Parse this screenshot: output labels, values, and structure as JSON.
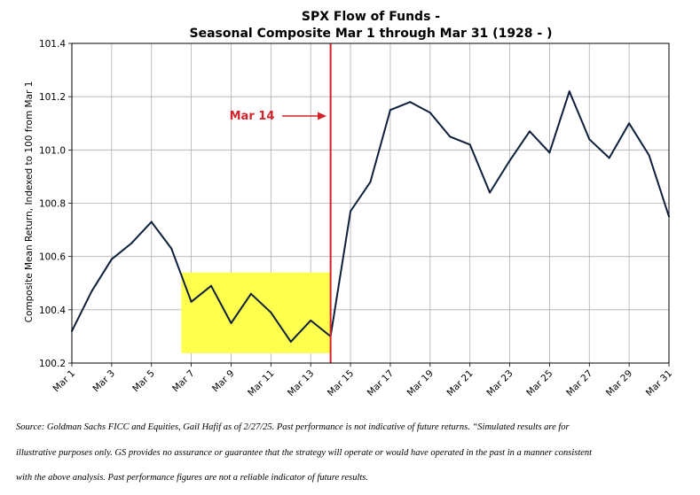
{
  "chart_data": {
    "type": "line",
    "title_line1": "SPX Flow of Funds -",
    "title_line2": "Seasonal Composite Mar 1 through Mar 31 (1928 - )",
    "ylabel": "Composite Mean Return, Indexed to 100 from Mar 1",
    "ylim": [
      100.2,
      101.4
    ],
    "yticks": [
      100.2,
      100.4,
      100.6,
      100.8,
      101.0,
      101.2,
      101.4
    ],
    "ytick_labels": [
      "100.2",
      "100.4",
      "100.6",
      "100.8",
      "101.0",
      "101.2",
      "101.4"
    ],
    "xlim": [
      1,
      31
    ],
    "xticks": [
      1,
      3,
      5,
      7,
      9,
      11,
      13,
      15,
      17,
      19,
      21,
      23,
      25,
      27,
      29,
      31
    ],
    "xtick_labels": [
      "Mar 1",
      "Mar 3",
      "Mar 5",
      "Mar 7",
      "Mar 9",
      "Mar 11",
      "Mar 13",
      "Mar 15",
      "Mar 17",
      "Mar 19",
      "Mar 21",
      "Mar 23",
      "Mar 25",
      "Mar 27",
      "Mar 29",
      "Mar 31"
    ],
    "grid": true,
    "series": [
      {
        "name": "Composite",
        "color": "#0d1f3c",
        "x": [
          1,
          2,
          3,
          4,
          5,
          6,
          7,
          8,
          9,
          10,
          11,
          12,
          13,
          14,
          15,
          16,
          17,
          18,
          19,
          20,
          21,
          22,
          23,
          24,
          25,
          26,
          27,
          28,
          29,
          30,
          31
        ],
        "values": [
          100.32,
          100.47,
          100.59,
          100.65,
          100.73,
          100.63,
          100.43,
          100.49,
          100.35,
          100.46,
          100.39,
          100.28,
          100.36,
          100.3,
          100.77,
          100.88,
          101.15,
          101.18,
          101.14,
          101.05,
          101.02,
          100.84,
          100.96,
          101.07,
          100.99,
          101.22,
          101.04,
          100.97,
          101.1,
          100.98,
          100.75
        ]
      }
    ],
    "highlight": {
      "x_range": [
        6.5,
        14
      ],
      "y_range": [
        100.237,
        100.54
      ],
      "color": "#ffff4d"
    },
    "vline": {
      "x": 14,
      "color": "#d2232a"
    },
    "annotation": {
      "text": "Mar 14",
      "color": "#d2232a"
    }
  },
  "footer": {
    "line1": "Source: Goldman Sachs FICC and Equities, Gail Hafif as of 2/27/25. Past performance is not indicative of future returns. “Simulated results are for",
    "line2": "illustrative purposes only. GS provides no assurance or guarantee that the strategy will operate or would have operated in the past in a manner consistent",
    "line3": "with the above analysis. Past performance figures are not a reliable indicator of future results."
  }
}
